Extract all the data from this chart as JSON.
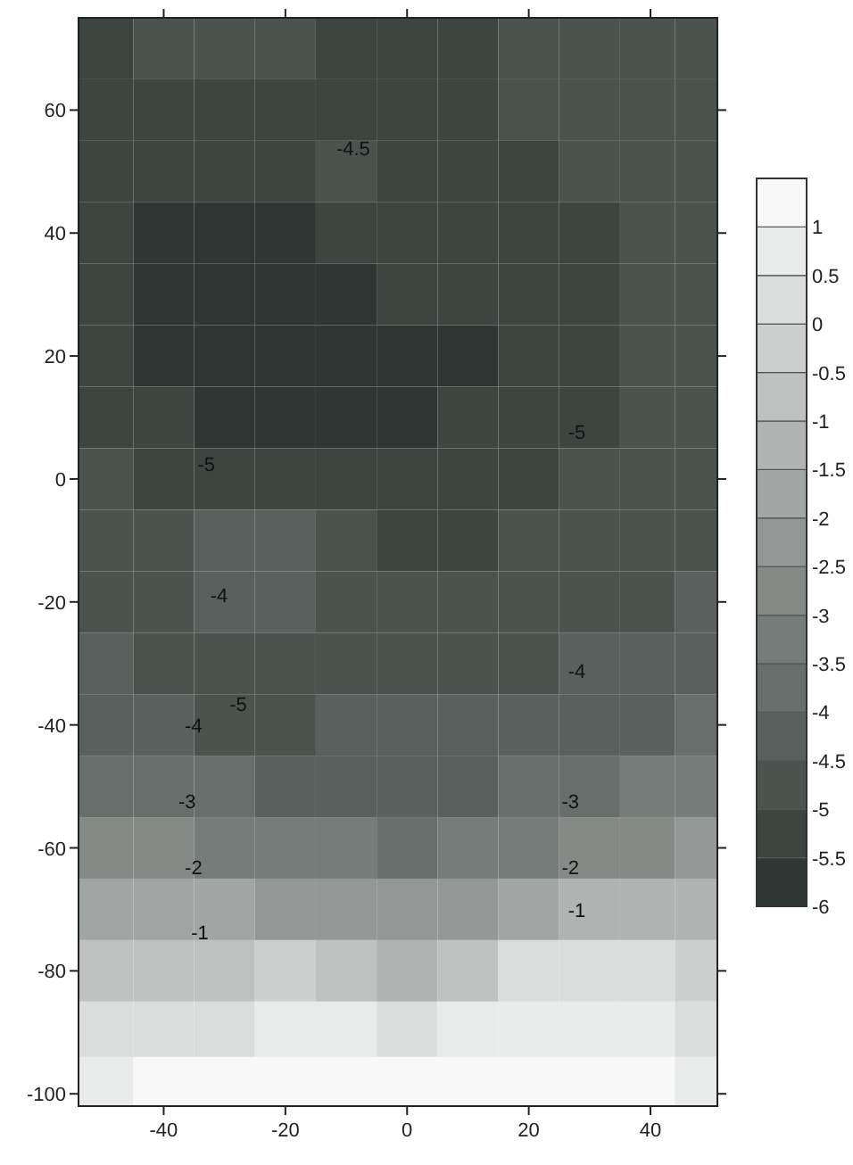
{
  "chart_data": {
    "type": "heatmap",
    "x": [
      -50,
      -40,
      -30,
      -20,
      -10,
      0,
      10,
      20,
      30,
      40,
      48
    ],
    "y": [
      70,
      60,
      50,
      40,
      30,
      20,
      10,
      0,
      -10,
      -20,
      -30,
      -40,
      -50,
      -60,
      -70,
      -80,
      -90,
      -98
    ],
    "cells": [
      [
        -5.2,
        -4.8,
        -4.8,
        -4.8,
        -5.2,
        -5.2,
        -5.2,
        -4.8,
        -4.8,
        -4.8,
        -4.8
      ],
      [
        -5.2,
        -5.2,
        -5.2,
        -5.2,
        -5.2,
        -5.2,
        -5.2,
        -4.8,
        -4.8,
        -4.8,
        -4.8
      ],
      [
        -5.2,
        -5.2,
        -5.2,
        -5.2,
        -4.8,
        -5.2,
        -5.2,
        -5.2,
        -4.8,
        -4.8,
        -4.8
      ],
      [
        -5.2,
        -5.7,
        -5.7,
        -5.7,
        -5.2,
        -5.2,
        -5.2,
        -5.2,
        -5.2,
        -4.8,
        -4.8
      ],
      [
        -5.2,
        -5.7,
        -5.7,
        -5.7,
        -5.7,
        -5.2,
        -5.2,
        -5.2,
        -5.2,
        -4.8,
        -4.8
      ],
      [
        -5.2,
        -5.7,
        -5.7,
        -5.7,
        -5.7,
        -5.7,
        -5.7,
        -5.2,
        -5.2,
        -4.8,
        -4.8
      ],
      [
        -5.2,
        -5.2,
        -5.7,
        -5.7,
        -5.7,
        -5.7,
        -5.2,
        -5.2,
        -5.2,
        -4.8,
        -4.8
      ],
      [
        -4.8,
        -5.2,
        -5.2,
        -5.2,
        -5.2,
        -5.2,
        -5.2,
        -5.2,
        -4.8,
        -4.8,
        -4.8
      ],
      [
        -4.8,
        -4.8,
        -4.3,
        -4.3,
        -4.8,
        -5.2,
        -5.2,
        -4.8,
        -4.8,
        -4.8,
        -4.8
      ],
      [
        -4.8,
        -4.8,
        -4.3,
        -4.3,
        -4.8,
        -4.8,
        -4.8,
        -4.8,
        -4.8,
        -4.8,
        -4.3
      ],
      [
        -4.3,
        -4.8,
        -4.8,
        -4.8,
        -4.8,
        -4.8,
        -4.8,
        -4.8,
        -4.3,
        -4.3,
        -4.3
      ],
      [
        -4.3,
        -4.3,
        -4.8,
        -4.8,
        -4.3,
        -4.3,
        -4.3,
        -4.3,
        -4.3,
        -4.3,
        -3.8
      ],
      [
        -3.8,
        -3.8,
        -3.8,
        -4.3,
        -4.3,
        -4.3,
        -4.3,
        -3.8,
        -3.8,
        -3.3,
        -3.3
      ],
      [
        -2.8,
        -2.8,
        -3.3,
        -3.3,
        -3.3,
        -3.8,
        -3.3,
        -3.3,
        -2.8,
        -2.8,
        -2.3
      ],
      [
        -1.8,
        -1.8,
        -1.8,
        -2.3,
        -2.3,
        -2.3,
        -2.3,
        -1.8,
        -1.3,
        -1.3,
        -1.3
      ],
      [
        -0.8,
        -0.8,
        -0.8,
        -0.3,
        -0.8,
        -1.3,
        -0.8,
        0.2,
        0.2,
        0.2,
        -0.3
      ],
      [
        0.2,
        0.2,
        0.2,
        0.7,
        0.7,
        0.2,
        0.7,
        0.7,
        0.7,
        0.7,
        0.2
      ],
      [
        0.7,
        1.2,
        1.2,
        1.2,
        1.2,
        1.2,
        1.2,
        1.2,
        1.2,
        1.2,
        0.7
      ]
    ],
    "xlim": [
      -54,
      51
    ],
    "ylim": [
      -102,
      75
    ],
    "xticks": [
      -40,
      -20,
      0,
      20,
      40
    ],
    "yticks": [
      -100,
      -80,
      -60,
      -40,
      -20,
      0,
      20,
      40,
      60
    ],
    "clim": [
      -6,
      1.5
    ],
    "cticks": [
      -6,
      -5.5,
      -5,
      -4.5,
      -4,
      -3.5,
      -3,
      -2.5,
      -2,
      -1.5,
      -1,
      -0.5,
      0,
      0.5,
      1
    ],
    "annotations": [
      "-4.5",
      "-5",
      "-5",
      "-4",
      "-4",
      "-5",
      "-4",
      "-3",
      "-3",
      "-2",
      "-2",
      "-1",
      "-1"
    ]
  }
}
